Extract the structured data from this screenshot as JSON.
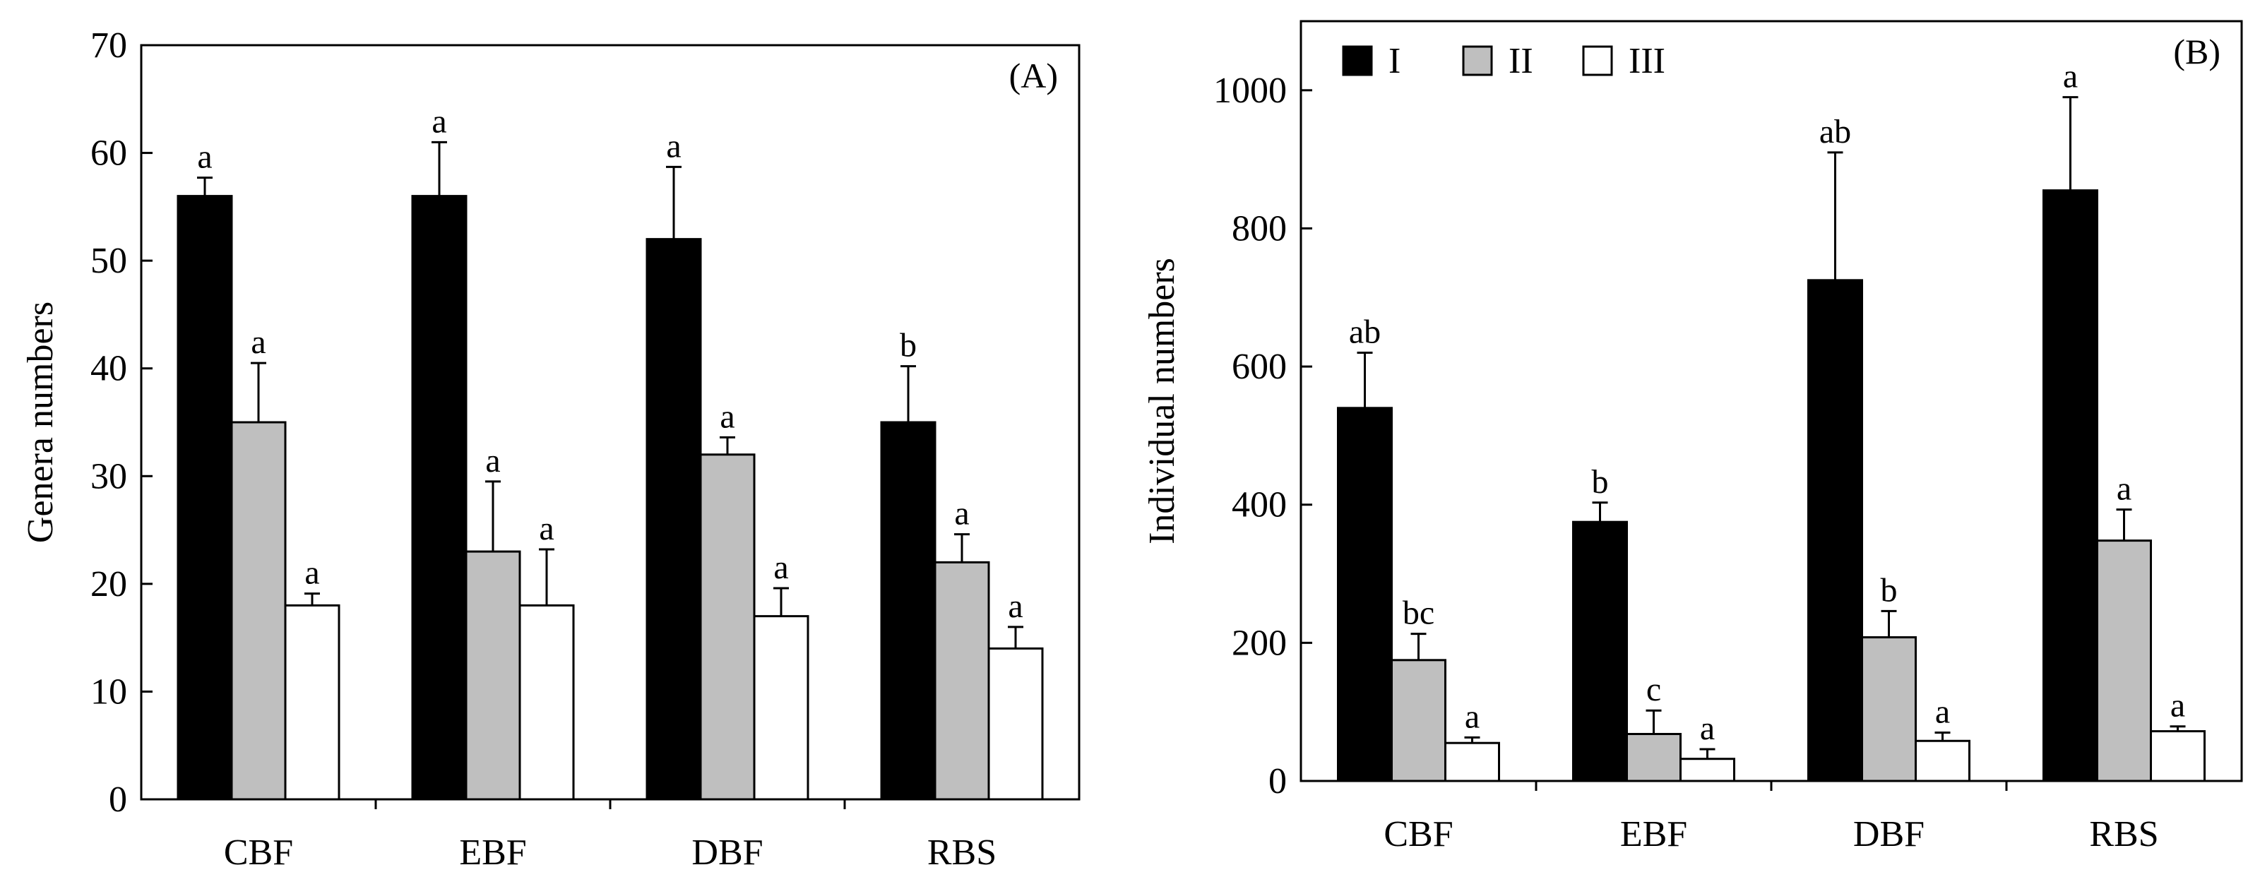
{
  "chart_data": [
    {
      "type": "bar",
      "panel_label": "(A)",
      "title": "",
      "xlabel": "",
      "ylabel": "Genera numbers",
      "ylim": [
        0,
        70
      ],
      "yticks": [
        0,
        10,
        20,
        30,
        40,
        50,
        60,
        70
      ],
      "categories": [
        "CBF",
        "EBF",
        "DBF",
        "RBS"
      ],
      "legend": false,
      "series": [
        {
          "name": "I",
          "color": "#000000",
          "values": [
            56,
            56,
            52,
            35
          ],
          "errors": [
            1.7,
            5.0,
            6.7,
            5.2
          ],
          "labels": [
            "a",
            "a",
            "a",
            "b"
          ]
        },
        {
          "name": "II",
          "color": "#bfbfbf",
          "values": [
            35,
            23,
            32,
            22
          ],
          "errors": [
            5.5,
            6.5,
            1.6,
            2.6
          ],
          "labels": [
            "a",
            "a",
            "a",
            "a"
          ]
        },
        {
          "name": "III",
          "color": "#ffffff",
          "values": [
            18,
            18,
            17,
            14
          ],
          "errors": [
            1.1,
            5.2,
            2.6,
            2.0
          ],
          "labels": [
            "a",
            "a",
            "a",
            "a"
          ]
        }
      ]
    },
    {
      "type": "bar",
      "panel_label": "(B)",
      "title": "",
      "xlabel": "",
      "ylabel": "Individual numbers",
      "ylim": [
        0,
        1100
      ],
      "yticks": [
        0,
        200,
        400,
        600,
        800,
        1000
      ],
      "categories": [
        "CBF",
        "EBF",
        "DBF",
        "RBS"
      ],
      "legend": true,
      "legend_position": "top-left",
      "series": [
        {
          "name": "I",
          "color": "#000000",
          "values": [
            540,
            375,
            725,
            855
          ],
          "errors": [
            80,
            28,
            185,
            135
          ],
          "labels": [
            "ab",
            "b",
            "ab",
            "a"
          ]
        },
        {
          "name": "II",
          "color": "#bfbfbf",
          "values": [
            175,
            68,
            208,
            348
          ],
          "errors": [
            38,
            34,
            38,
            45
          ],
          "labels": [
            "bc",
            "c",
            "b",
            "a"
          ]
        },
        {
          "name": "III",
          "color": "#ffffff",
          "values": [
            55,
            32,
            58,
            72
          ],
          "errors": [
            8,
            14,
            12,
            7
          ],
          "labels": [
            "a",
            "a",
            "a",
            "a"
          ]
        }
      ]
    }
  ]
}
